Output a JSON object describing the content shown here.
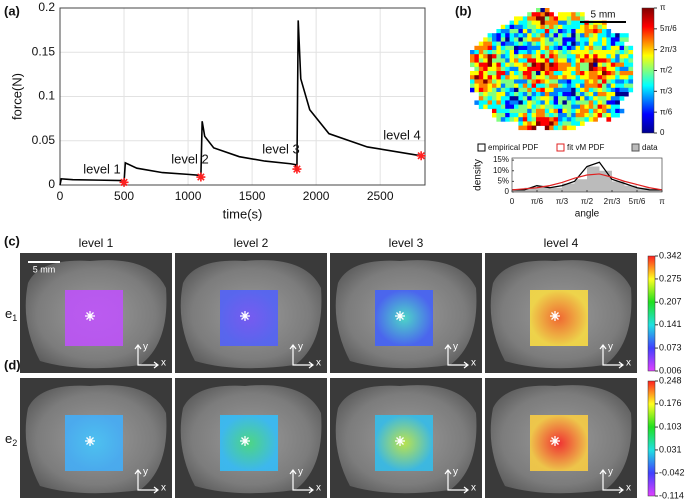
{
  "chart_data": [
    {
      "type": "line",
      "panel_label": "(a)",
      "x_label": "time(s)",
      "y_label": "force(N)",
      "xlim": [
        0,
        2850
      ],
      "ylim": [
        0,
        0.2
      ],
      "xticks": [
        0,
        500,
        1000,
        1500,
        2000,
        2500
      ],
      "yticks": [
        0,
        0.05,
        0.1,
        0.15,
        0.2
      ],
      "grid": true,
      "annotations": [
        "level 1",
        "level 2",
        "level 3",
        "level 4"
      ],
      "series": [
        {
          "color": "#000000",
          "x": [
            0,
            10,
            100,
            300,
            490,
            500,
            510,
            600,
            800,
            1000,
            1090,
            1100,
            1110,
            1130,
            1200,
            1400,
            1600,
            1800,
            1840,
            1850,
            1860,
            1880,
            1950,
            2100,
            2400,
            2820
          ],
          "values": [
            0.0,
            0.007,
            0.006,
            0.0055,
            0.005,
            0.003,
            0.025,
            0.019,
            0.014,
            0.012,
            0.011,
            0.009,
            0.072,
            0.055,
            0.042,
            0.032,
            0.027,
            0.024,
            0.023,
            0.018,
            0.186,
            0.12,
            0.085,
            0.058,
            0.043,
            0.033
          ]
        },
        {
          "color": "#ff2020",
          "marker": "star",
          "x": [
            500,
            1100,
            1850,
            2820
          ],
          "values": [
            0.003,
            0.009,
            0.018,
            0.033
          ]
        }
      ]
    },
    {
      "type": "line",
      "panel_label": "(b)",
      "x_label": "angle",
      "y_label": "density",
      "xlim": [
        0,
        3.1416
      ],
      "ylim": [
        0,
        16
      ],
      "xticks": [
        0,
        {
          "value": 0.5236,
          "label": "π/6"
        },
        {
          "value": 1.0472,
          "label": "π/3"
        },
        {
          "value": 1.5708,
          "label": "π/2"
        },
        {
          "value": 2.0944,
          "label": "2π/3"
        },
        {
          "value": 2.618,
          "label": "5π/6"
        },
        {
          "value": 3.1416,
          "label": "π"
        }
      ],
      "yticks": [
        0,
        {
          "value": 5,
          "label": "5%"
        },
        {
          "value": 10,
          "label": "10%"
        },
        {
          "value": 15,
          "label": "15%"
        }
      ],
      "series": [
        {
          "name": "empirical PDF",
          "color": "#000000",
          "x": [
            0,
            0.26,
            0.52,
            0.79,
            1.05,
            1.31,
            1.57,
            1.83,
            2.09,
            2.36,
            2.62,
            2.88,
            3.14
          ],
          "values": [
            1,
            1,
            3,
            2,
            3,
            5,
            12,
            14,
            6,
            4,
            2,
            1,
            1
          ]
        },
        {
          "name": "fit vM PDF",
          "color": "#e02020",
          "x": [
            0,
            0.26,
            0.52,
            0.79,
            1.05,
            1.31,
            1.57,
            1.83,
            2.09,
            2.36,
            2.62,
            2.88,
            3.14
          ],
          "values": [
            1,
            1.5,
            2,
            3,
            4.5,
            6.5,
            8,
            8.5,
            7,
            5,
            3.5,
            2,
            1
          ]
        }
      ],
      "histogram": {
        "name": "data",
        "color": "#bbbbbb",
        "bins": [
          0,
          0.2618,
          0.5236,
          0.7854,
          1.0472,
          1.309,
          1.5708,
          1.8326,
          2.0944,
          2.3562,
          2.618,
          2.8798,
          3.1416
        ],
        "values": [
          1,
          2,
          3,
          2,
          4,
          6,
          12,
          10,
          5,
          3,
          2,
          1
        ]
      }
    }
  ],
  "orientation_map": {
    "scale_bar": "5 mm",
    "colorbar_lim": [
      0,
      3.1416
    ],
    "colorbar_ticks": [
      0,
      {
        "value": 0.5236,
        "label": "π/6"
      },
      {
        "value": 1.0472,
        "label": "π/3"
      },
      {
        "value": 1.5708,
        "label": "π/2"
      },
      {
        "value": 2.0944,
        "label": "2π/3"
      },
      {
        "value": 2.618,
        "label": "5π/6"
      },
      {
        "value": 3.1416,
        "label": "π"
      }
    ]
  },
  "strain_fields": {
    "panel_labels": [
      "(c)",
      "(d)"
    ],
    "columns": [
      "level 1",
      "level 2",
      "level 3",
      "level 4"
    ],
    "rows": [
      {
        "label": "e",
        "subscript": "1",
        "colorbar_lim": [
          0.006,
          0.342
        ],
        "colorbar_ticks": [
          0.006,
          0.073,
          0.141,
          0.207,
          0.275,
          0.342
        ]
      },
      {
        "label": "e",
        "subscript": "2",
        "colorbar_lim": [
          -0.114,
          0.248
        ],
        "colorbar_ticks": [
          -0.114,
          -0.042,
          0.031,
          0.103,
          0.176,
          0.248
        ]
      }
    ],
    "scale_bar": "5 mm",
    "axis_icon": {
      "x": "x",
      "y": "y"
    }
  }
}
